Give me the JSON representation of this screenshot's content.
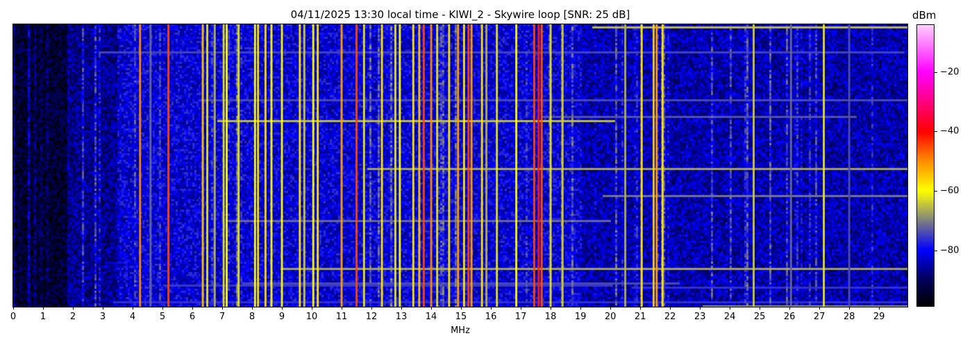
{
  "chart_data": {
    "type": "heatmap",
    "title": "04/11/2025 13:30 local time - KIWI_2 - Skywire loop [SNR: 25 dB]",
    "xlabel": "MHz",
    "ylabel": "",
    "xlim": [
      0,
      29.95
    ],
    "xticks": [
      "0",
      "1",
      "2",
      "3",
      "4",
      "5",
      "6",
      "7",
      "8",
      "9",
      "10",
      "11",
      "12",
      "13",
      "14",
      "15",
      "16",
      "17",
      "18",
      "19",
      "20",
      "21",
      "22",
      "23",
      "24",
      "25",
      "26",
      "27",
      "28",
      "29"
    ],
    "colorbar": {
      "label": "dBm",
      "clim": [
        -99,
        -4
      ],
      "ticks": [
        -20,
        -40,
        -60,
        -80
      ],
      "tick_labels": [
        "−20",
        "−40",
        "−60",
        "−80"
      ],
      "colormap": [
        [
          -99,
          "#000000"
        ],
        [
          -90,
          "#00005a"
        ],
        [
          -80,
          "#0000ff"
        ],
        [
          -70,
          "#808080"
        ],
        [
          -60,
          "#ffff00"
        ],
        [
          -50,
          "#ff8c00"
        ],
        [
          -40,
          "#ff0000"
        ],
        [
          -20,
          "#ff00ff"
        ],
        [
          -4,
          "#ffd0ff"
        ]
      ]
    },
    "noise_floor": [
      {
        "from_mhz": 0,
        "to_mhz": 1.8,
        "dbm": -94
      },
      {
        "from_mhz": 1.8,
        "to_mhz": 3.5,
        "dbm": -87
      },
      {
        "from_mhz": 3.5,
        "to_mhz": 19,
        "dbm": -82
      },
      {
        "from_mhz": 19,
        "to_mhz": 29.95,
        "dbm": -85
      }
    ],
    "signals": [
      {
        "mhz": 4.25,
        "dbm": -50
      },
      {
        "mhz": 4.6,
        "dbm": -72
      },
      {
        "mhz": 5.2,
        "dbm": -45
      },
      {
        "mhz": 6.35,
        "dbm": -55
      },
      {
        "mhz": 6.5,
        "dbm": -62
      },
      {
        "mhz": 6.75,
        "dbm": -66
      },
      {
        "mhz": 7.05,
        "dbm": -62
      },
      {
        "mhz": 7.15,
        "dbm": -60
      },
      {
        "mhz": 7.55,
        "dbm": -62
      },
      {
        "mhz": 8.1,
        "dbm": -60
      },
      {
        "mhz": 8.2,
        "dbm": -58
      },
      {
        "mhz": 8.45,
        "dbm": -57
      },
      {
        "mhz": 8.65,
        "dbm": -60
      },
      {
        "mhz": 9.0,
        "dbm": -60
      },
      {
        "mhz": 9.6,
        "dbm": -58
      },
      {
        "mhz": 9.75,
        "dbm": -64
      },
      {
        "mhz": 10.05,
        "dbm": -60
      },
      {
        "mhz": 10.2,
        "dbm": -58
      },
      {
        "mhz": 11.0,
        "dbm": -52
      },
      {
        "mhz": 11.5,
        "dbm": -45
      },
      {
        "mhz": 11.75,
        "dbm": -62
      },
      {
        "mhz": 12.35,
        "dbm": -58
      },
      {
        "mhz": 12.8,
        "dbm": -62
      },
      {
        "mhz": 12.95,
        "dbm": -60
      },
      {
        "mhz": 13.4,
        "dbm": -58
      },
      {
        "mhz": 13.6,
        "dbm": -55
      },
      {
        "mhz": 13.75,
        "dbm": -45
      },
      {
        "mhz": 14.0,
        "dbm": -50
      },
      {
        "mhz": 14.2,
        "dbm": -62
      },
      {
        "mhz": 14.6,
        "dbm": -58
      },
      {
        "mhz": 14.9,
        "dbm": -52
      },
      {
        "mhz": 15.1,
        "dbm": -58
      },
      {
        "mhz": 15.25,
        "dbm": -45
      },
      {
        "mhz": 15.35,
        "dbm": -52
      },
      {
        "mhz": 15.7,
        "dbm": -58
      },
      {
        "mhz": 15.85,
        "dbm": -66
      },
      {
        "mhz": 16.2,
        "dbm": -62
      },
      {
        "mhz": 16.85,
        "dbm": -60
      },
      {
        "mhz": 17.45,
        "dbm": -45
      },
      {
        "mhz": 17.6,
        "dbm": -42
      },
      {
        "mhz": 17.7,
        "dbm": -46
      },
      {
        "mhz": 18.0,
        "dbm": -62
      },
      {
        "mhz": 18.4,
        "dbm": -64
      },
      {
        "mhz": 20.5,
        "dbm": -66
      },
      {
        "mhz": 21.05,
        "dbm": -58
      },
      {
        "mhz": 21.45,
        "dbm": -56
      },
      {
        "mhz": 21.55,
        "dbm": -52
      },
      {
        "mhz": 21.75,
        "dbm": -58
      },
      {
        "mhz": 24.8,
        "dbm": -64
      },
      {
        "mhz": 26.05,
        "dbm": -72
      },
      {
        "mhz": 27.15,
        "dbm": -62
      },
      {
        "mhz": 28.0,
        "dbm": -74
      }
    ]
  }
}
